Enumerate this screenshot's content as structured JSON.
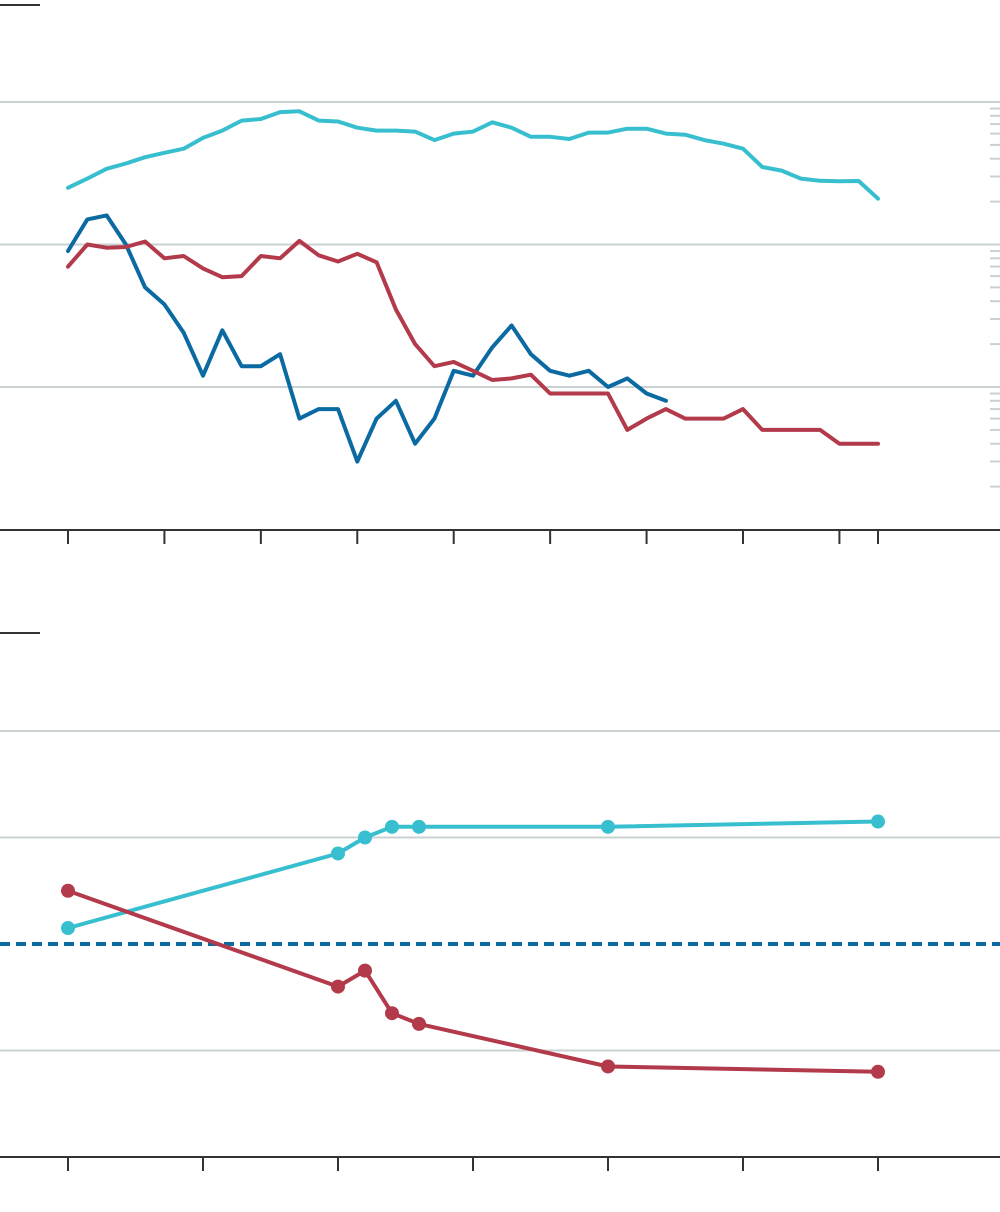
{
  "colors": {
    "teal": "#38bfcf",
    "blue": "#0b6aa1",
    "red": "#b23a4b",
    "grid": "#c9d1d3",
    "axis": "#333333"
  },
  "chart_data": [
    {
      "type": "line",
      "title": "",
      "xlabel": "",
      "ylabel": "",
      "yscale": "log",
      "xlim": [
        0,
        42
      ],
      "ylim": [
        0.5,
        200
      ],
      "gridlines": [
        1,
        10,
        100
      ],
      "grid": true,
      "x_ticks": [
        0,
        5,
        10,
        15,
        20,
        25,
        30,
        35,
        40,
        42
      ],
      "series": [
        {
          "color": "teal",
          "x": [
            0,
            1,
            2,
            3,
            4,
            5,
            6,
            7,
            8,
            9,
            10,
            11,
            12,
            13,
            14,
            15,
            16,
            17,
            18,
            19,
            20,
            21,
            22,
            23,
            24,
            25,
            26,
            27,
            28,
            29,
            30,
            31,
            32,
            33,
            34,
            35,
            36,
            37,
            38,
            39,
            40,
            41,
            42
          ],
          "y": [
            25,
            29,
            34,
            37,
            41,
            44,
            47,
            56,
            63,
            74,
            76,
            85,
            86,
            74,
            73,
            66,
            63,
            63,
            62,
            54,
            60,
            62,
            72,
            66,
            57,
            57,
            55,
            61,
            61,
            65,
            65,
            60,
            59,
            54,
            51,
            47,
            35,
            33,
            29,
            28,
            27.8,
            27.9,
            21
          ]
        },
        {
          "color": "blue",
          "x": [
            0,
            1,
            2,
            3,
            4,
            5,
            6,
            7,
            8,
            9,
            10,
            11,
            12,
            13,
            14,
            15,
            16,
            17,
            18,
            19,
            20,
            21,
            22,
            23,
            24,
            25,
            26,
            27,
            28,
            29,
            30,
            31
          ],
          "y": [
            9,
            15,
            16,
            10,
            5,
            3.8,
            2.4,
            1.2,
            2.5,
            1.4,
            1.4,
            1.7,
            0.6,
            0.7,
            0.7,
            0.3,
            0.6,
            0.8,
            0.4,
            0.6,
            1.3,
            1.2,
            1.9,
            2.7,
            1.7,
            1.3,
            1.2,
            1.3,
            1.0,
            1.15,
            0.9,
            0.8
          ]
        },
        {
          "color": "red",
          "x": [
            0,
            1,
            2,
            3,
            4,
            5,
            6,
            7,
            8,
            9,
            10,
            11,
            12,
            13,
            14,
            15,
            16,
            17,
            18,
            19,
            20,
            21,
            22,
            23,
            24,
            25,
            26,
            27,
            28,
            29,
            30,
            31,
            32,
            33,
            34,
            35,
            36,
            37,
            38,
            39,
            40,
            41,
            42
          ],
          "y": [
            7,
            10,
            9.5,
            9.6,
            10.5,
            8,
            8.3,
            6.8,
            5.9,
            6.0,
            8.3,
            8.0,
            10.6,
            8.4,
            7.6,
            8.6,
            7.5,
            3.5,
            2.0,
            1.4,
            1.5,
            1.3,
            1.12,
            1.15,
            1.22,
            0.9,
            0.9,
            0.9,
            0.9,
            0.5,
            0.6,
            0.7,
            0.6,
            0.6,
            0.6,
            0.7,
            0.5,
            0.5,
            0.5,
            0.5,
            0.4,
            0.4,
            0.4
          ]
        }
      ]
    },
    {
      "type": "line",
      "title": "",
      "xlabel": "",
      "ylabel": "",
      "xlim": [
        0,
        30
      ],
      "ylim": [
        0,
        4
      ],
      "grid": true,
      "gridlines": [
        1,
        2,
        3,
        4
      ],
      "x_ticks": [
        0,
        5,
        10,
        15,
        20,
        25,
        30
      ],
      "reference_line": {
        "y": 2,
        "color": "blue",
        "style": "dashed"
      },
      "series": [
        {
          "color": "teal",
          "markers": true,
          "x": [
            0,
            10,
            11,
            12,
            13,
            20,
            30
          ],
          "y": [
            2.15,
            2.85,
            3.0,
            3.1,
            3.1,
            3.1,
            3.15
          ]
        },
        {
          "color": "red",
          "markers": true,
          "x": [
            0,
            10,
            11,
            12,
            13,
            20,
            30
          ],
          "y": [
            2.5,
            1.6,
            1.75,
            1.35,
            1.25,
            0.85,
            0.8
          ]
        }
      ]
    }
  ]
}
